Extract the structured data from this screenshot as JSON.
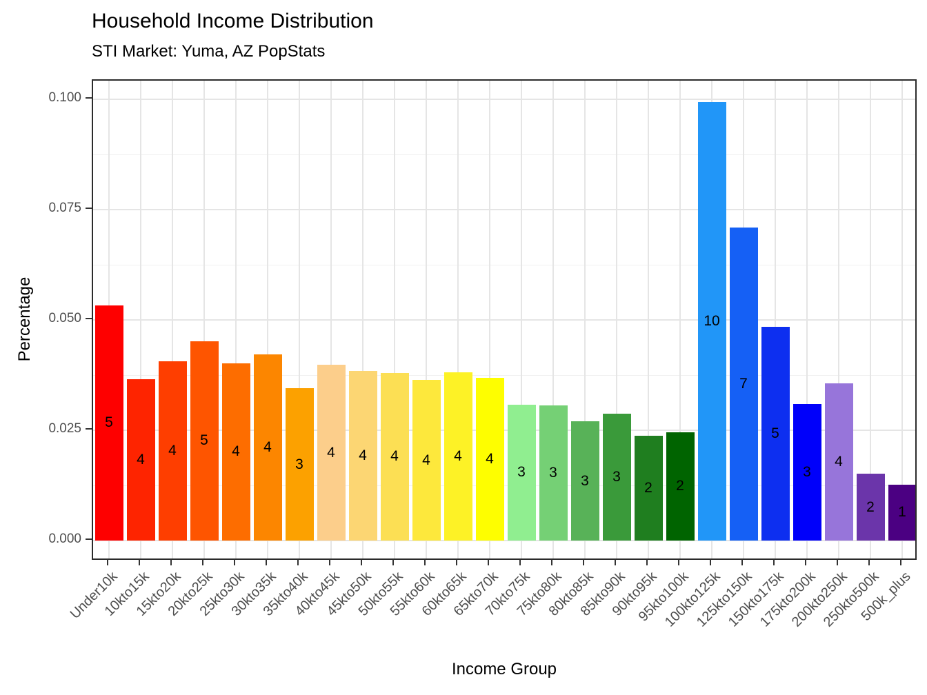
{
  "chart_data": {
    "type": "bar",
    "title": "Household Income Distribution",
    "subtitle": "STI Market: Yuma, AZ PopStats",
    "xlabel": "Income Group",
    "ylabel": "Percentage",
    "ylim": [
      -0.005,
      0.1045
    ],
    "ytick_values": [
      0.0,
      0.025,
      0.05,
      0.075,
      0.1
    ],
    "ytick_labels": [
      "0.000",
      "0.025",
      "0.050",
      "0.075",
      "0.100"
    ],
    "minor_ytick_values": [
      0.0125,
      0.0375,
      0.0625,
      0.0875
    ],
    "grid": "major and minor horizontal, major vertical at category centers",
    "legend": false,
    "categories": [
      "Under10k",
      "10kto15k",
      "15kto20k",
      "20kto25k",
      "25kto30k",
      "30kto35k",
      "35kto40k",
      "40kto45k",
      "45kto50k",
      "50kto55k",
      "55kto60k",
      "60kto65k",
      "65kto70k",
      "70kto75k",
      "75kto80k",
      "80kto85k",
      "85kto90k",
      "90kto95k",
      "95kto100k",
      "100kto125k",
      "125kto150k",
      "150kto175k",
      "175kto200k",
      "200kto250k",
      "250kto500k",
      "500k_plus"
    ],
    "values": [
      0.0533,
      0.0365,
      0.0407,
      0.0452,
      0.0402,
      0.0422,
      0.0345,
      0.0398,
      0.0384,
      0.038,
      0.0364,
      0.0381,
      0.0368,
      0.0308,
      0.0306,
      0.027,
      0.0288,
      0.0237,
      0.0246,
      0.0994,
      0.071,
      0.0484,
      0.031,
      0.0356,
      0.0151,
      0.0127
    ],
    "bar_labels": [
      "5",
      "4",
      "4",
      "5",
      "4",
      "4",
      "3",
      "4",
      "4",
      "4",
      "4",
      "4",
      "4",
      "3",
      "3",
      "3",
      "3",
      "2",
      "2",
      "10",
      "7",
      "5",
      "3",
      "4",
      "2",
      "1"
    ],
    "bar_colors": [
      "#FE0000",
      "#FE2400",
      "#FE3E00",
      "#FE5500",
      "#FD6D00",
      "#FC8600",
      "#FCA100",
      "#FCCE8B",
      "#FCD673",
      "#FCDF54",
      "#FDE83C",
      "#FDF226",
      "#FEFE00",
      "#90EE90",
      "#75D075",
      "#58B258",
      "#3A9A3A",
      "#1F7E1F",
      "#006400",
      "#2196F8",
      "#1560F5",
      "#0D2FF0",
      "#0000FA",
      "#9775DA",
      "#6B35AA",
      "#4B0082"
    ]
  },
  "style": {
    "panel_border": "#2b2b2b",
    "grid_major": "#E5E5E5",
    "grid_minor": "#F0F0F0",
    "tick_mark": "#333333",
    "tick_text": "#4d4d4d",
    "title_text": "#000000",
    "bar_label_text": "#000000",
    "background": "#ffffff"
  }
}
